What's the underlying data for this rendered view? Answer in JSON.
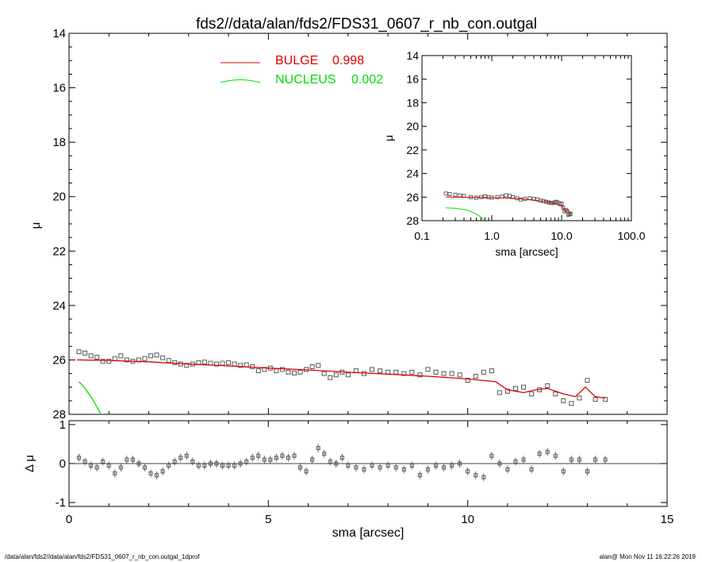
{
  "title": "fds2//data/alan/fds2/FDS31_0607_r_nb_con.outgal",
  "footer": {
    "left": "/data/alan/fds2//data/alan/fds2/FDS31_0607_r_nb_con.outgal_1dprof",
    "right": "alan@  Mon Nov 11 16:22:26 2019"
  },
  "legend": {
    "bulge": {
      "name": "BULGE",
      "value": "0.998",
      "color": "#e00000"
    },
    "nucleus": {
      "name": "NUCLEUS",
      "value": "0.002",
      "color": "#00dd00"
    }
  },
  "colors": {
    "data": "#555555",
    "bulge": "#e00000",
    "nucleus": "#00dd00",
    "axes": "#000000"
  },
  "chart_data": [
    {
      "type": "scatter",
      "panel": "main",
      "title": "fds2//data/alan/fds2/FDS31_0607_r_nb_con.outgal",
      "xlabel": "",
      "ylabel": "μ",
      "xlim": [
        0,
        15
      ],
      "ylim": [
        28,
        14
      ],
      "xticks": [
        "0",
        "5",
        "10",
        "15"
      ],
      "yticks": [
        "14",
        "16",
        "18",
        "20",
        "22",
        "24",
        "26",
        "28"
      ],
      "series": [
        {
          "role": "data",
          "x": [
            0.25,
            0.4,
            0.55,
            0.7,
            0.85,
            1.0,
            1.15,
            1.3,
            1.45,
            1.6,
            1.75,
            1.9,
            2.05,
            2.2,
            2.35,
            2.5,
            2.65,
            2.8,
            2.95,
            3.1,
            3.25,
            3.4,
            3.55,
            3.7,
            3.85,
            4.0,
            4.15,
            4.3,
            4.45,
            4.6,
            4.75,
            4.9,
            5.05,
            5.2,
            5.35,
            5.5,
            5.65,
            5.8,
            5.95,
            6.1,
            6.25,
            6.4,
            6.55,
            6.7,
            6.85,
            7.0,
            7.2,
            7.4,
            7.6,
            7.8,
            8.0,
            8.2,
            8.4,
            8.6,
            8.8,
            9.0,
            9.2,
            9.4,
            9.6,
            9.8,
            10.0,
            10.2,
            10.4,
            10.6,
            10.8,
            11.0,
            11.2,
            11.4,
            11.6,
            11.8,
            12.0,
            12.2,
            12.4,
            12.6,
            12.8,
            13.0,
            13.2,
            13.45
          ],
          "y": [
            25.7,
            25.75,
            25.85,
            25.9,
            26.05,
            26.05,
            25.95,
            25.85,
            26.0,
            26.05,
            26.0,
            25.95,
            25.85,
            25.82,
            25.92,
            26.02,
            26.1,
            26.15,
            26.2,
            26.15,
            26.1,
            26.08,
            26.12,
            26.15,
            26.12,
            26.1,
            26.15,
            26.2,
            26.18,
            26.25,
            26.4,
            26.35,
            26.3,
            26.4,
            26.35,
            26.45,
            26.48,
            26.45,
            26.35,
            26.25,
            26.2,
            26.5,
            26.65,
            26.55,
            26.45,
            26.55,
            26.4,
            26.5,
            26.35,
            26.4,
            26.45,
            26.45,
            26.5,
            26.45,
            26.55,
            26.35,
            26.45,
            26.5,
            26.5,
            26.55,
            26.75,
            26.6,
            26.45,
            26.4,
            27.2,
            27.15,
            27.05,
            27.0,
            27.25,
            27.1,
            26.95,
            27.25,
            27.5,
            27.6,
            27.4,
            26.75,
            27.45,
            27.45
          ]
        },
        {
          "role": "model",
          "name": "BULGE",
          "x": [
            0.2,
            1.0,
            2.0,
            3.0,
            4.0,
            5.0,
            6.0,
            7.0,
            8.0,
            9.0,
            10.0,
            10.7,
            11.0,
            11.4,
            11.7,
            12.0,
            12.4,
            12.7,
            12.95,
            13.2,
            13.45
          ],
          "y": [
            26.0,
            26.02,
            26.07,
            26.15,
            26.22,
            26.3,
            26.37,
            26.45,
            26.52,
            26.6,
            26.7,
            26.8,
            27.1,
            27.2,
            27.1,
            27.05,
            27.25,
            27.35,
            27.0,
            27.35,
            27.4
          ]
        },
        {
          "role": "model",
          "name": "NUCLEUS",
          "x": [
            0.25,
            0.35,
            0.45,
            0.55,
            0.65,
            0.75,
            0.8
          ],
          "y": [
            26.8,
            26.95,
            27.15,
            27.35,
            27.6,
            27.85,
            28.0
          ]
        }
      ]
    },
    {
      "type": "scatter",
      "panel": "residual",
      "xlabel": "sma [arcsec]",
      "ylabel": "Δ μ",
      "xlim": [
        0,
        15
      ],
      "ylim": [
        -1.1,
        1.1
      ],
      "xticks": [
        "0",
        "5",
        "10",
        "15"
      ],
      "yticks": [
        "-1",
        "0",
        "1"
      ],
      "series": [
        {
          "role": "residual",
          "x": [
            0.25,
            0.4,
            0.55,
            0.7,
            0.85,
            1.0,
            1.15,
            1.3,
            1.45,
            1.6,
            1.75,
            1.9,
            2.05,
            2.2,
            2.35,
            2.5,
            2.65,
            2.8,
            2.95,
            3.1,
            3.25,
            3.4,
            3.55,
            3.7,
            3.85,
            4.0,
            4.15,
            4.3,
            4.45,
            4.6,
            4.75,
            4.9,
            5.05,
            5.2,
            5.35,
            5.5,
            5.65,
            5.8,
            5.95,
            6.1,
            6.25,
            6.4,
            6.55,
            6.7,
            6.85,
            7.0,
            7.2,
            7.4,
            7.6,
            7.8,
            8.0,
            8.2,
            8.4,
            8.6,
            8.8,
            9.0,
            9.2,
            9.4,
            9.6,
            9.8,
            10.0,
            10.2,
            10.4,
            10.6,
            10.8,
            11.0,
            11.2,
            11.4,
            11.6,
            11.8,
            12.0,
            12.2,
            12.4,
            12.6,
            12.8,
            13.0,
            13.2,
            13.45
          ],
          "y": [
            0.15,
            0.05,
            -0.05,
            -0.1,
            0.05,
            -0.05,
            -0.25,
            -0.1,
            0.1,
            0.1,
            0.0,
            -0.1,
            -0.25,
            -0.3,
            -0.2,
            -0.05,
            0.05,
            0.15,
            0.2,
            0.05,
            -0.05,
            -0.05,
            0.0,
            0.0,
            -0.05,
            -0.05,
            -0.05,
            0.0,
            0.05,
            0.15,
            0.2,
            0.1,
            0.1,
            0.15,
            0.2,
            0.15,
            0.2,
            -0.1,
            -0.2,
            0.1,
            0.4,
            0.25,
            0.05,
            0.0,
            0.15,
            -0.05,
            -0.1,
            -0.15,
            -0.05,
            -0.1,
            -0.05,
            -0.1,
            -0.15,
            -0.05,
            -0.3,
            -0.15,
            -0.05,
            -0.1,
            -0.05,
            0.0,
            -0.2,
            -0.3,
            -0.35,
            0.2,
            0.0,
            -0.15,
            0.05,
            0.1,
            -0.15,
            0.25,
            0.3,
            0.2,
            -0.2,
            0.1,
            0.1,
            -0.2,
            0.1,
            0.1
          ]
        }
      ]
    },
    {
      "type": "scatter",
      "panel": "inset",
      "xlabel": "sma [arcsec]",
      "ylabel": "μ",
      "xscale": "log",
      "xlim": [
        0.1,
        100.0
      ],
      "ylim": [
        28,
        14
      ],
      "xticks": [
        "0.1",
        "1.0",
        "10.0",
        "100.0"
      ],
      "yticks": [
        "14",
        "16",
        "18",
        "20",
        "22",
        "24",
        "26",
        "28"
      ],
      "series": [
        {
          "role": "data",
          "x": [
            0.22,
            0.25,
            0.3,
            0.35,
            0.4,
            0.5,
            0.6,
            0.7,
            0.8,
            0.9,
            1.0,
            1.2,
            1.4,
            1.6,
            1.8,
            2.0,
            2.3,
            2.6,
            3.0,
            3.5,
            4.0,
            4.5,
            5.0,
            5.5,
            6.0,
            6.5,
            7.0,
            7.5,
            8.0,
            8.5,
            9.0,
            9.5,
            10.0,
            10.5,
            11.0,
            11.5,
            12.0,
            12.5,
            13.0,
            13.4
          ],
          "y": [
            25.7,
            25.75,
            25.8,
            25.85,
            25.9,
            26.0,
            26.05,
            26.0,
            25.95,
            26.0,
            26.05,
            26.0,
            25.95,
            25.85,
            25.9,
            26.0,
            26.1,
            26.2,
            26.15,
            26.1,
            26.15,
            26.2,
            26.3,
            26.35,
            26.4,
            26.45,
            26.5,
            26.5,
            26.45,
            26.4,
            26.5,
            26.6,
            26.55,
            26.9,
            27.2,
            27.1,
            27.2,
            27.5,
            27.45,
            27.4
          ]
        },
        {
          "role": "model",
          "name": "BULGE",
          "x": [
            0.22,
            0.5,
            1.0,
            2.0,
            4.0,
            7.0,
            10.0,
            11.0,
            12.0,
            13.0,
            13.4
          ],
          "y": [
            26.0,
            26.02,
            26.05,
            26.1,
            26.25,
            26.45,
            26.7,
            27.1,
            27.05,
            27.3,
            27.4
          ]
        },
        {
          "role": "model",
          "name": "NUCLEUS",
          "x": [
            0.22,
            0.3,
            0.4,
            0.5,
            0.6,
            0.7,
            0.8
          ],
          "y": [
            26.9,
            26.95,
            27.05,
            27.2,
            27.45,
            27.7,
            27.95
          ]
        }
      ]
    }
  ]
}
